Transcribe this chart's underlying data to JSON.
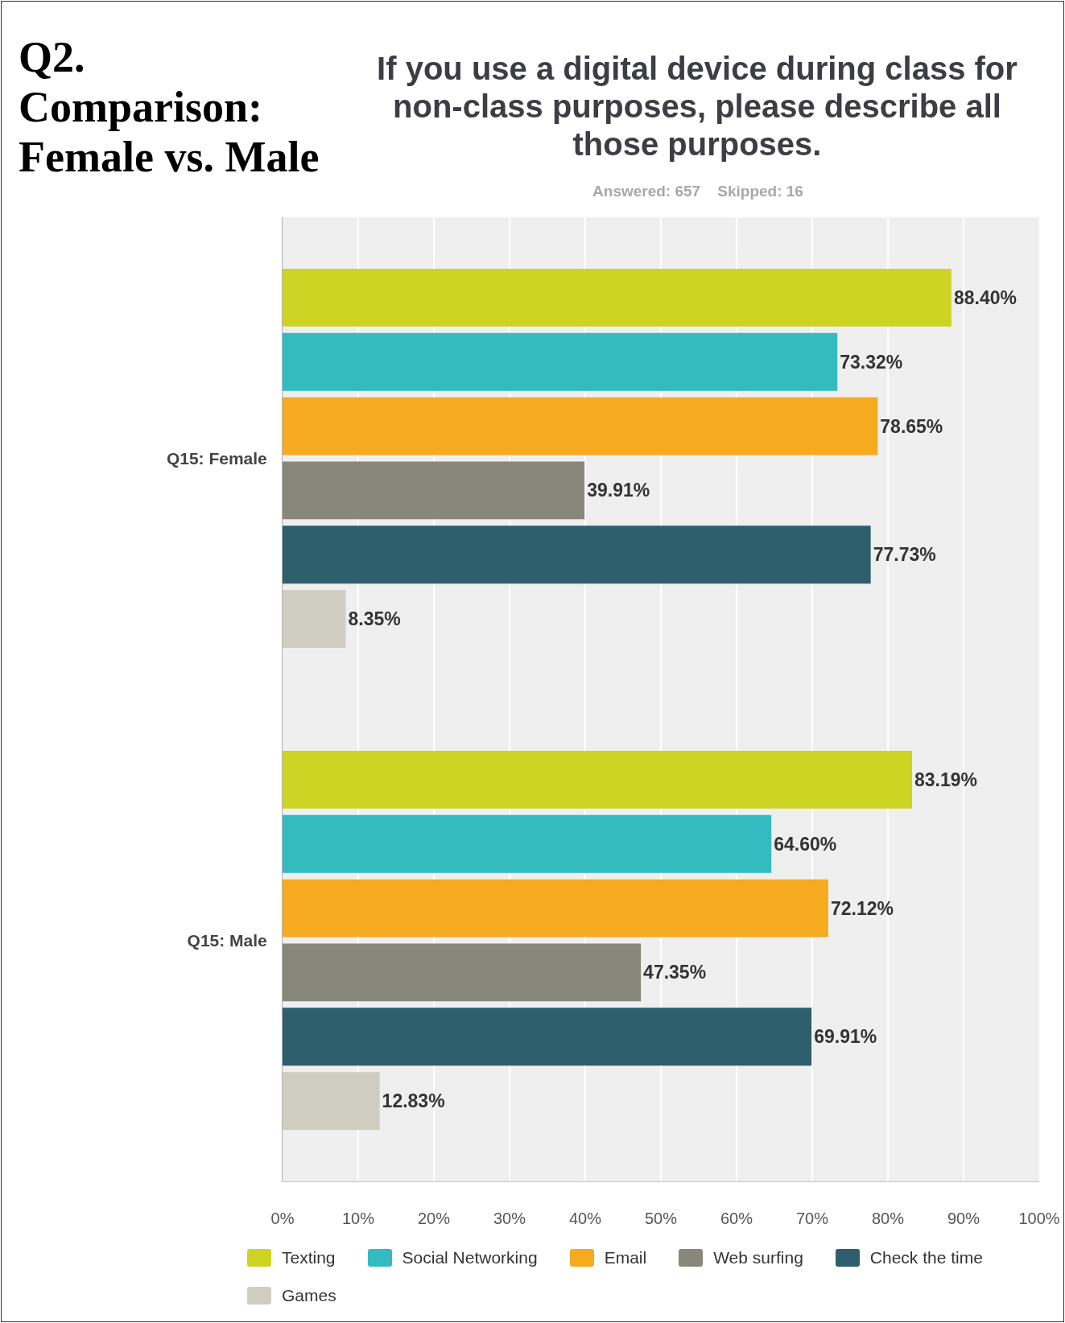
{
  "chart_data": {
    "type": "bar",
    "orientation": "horizontal",
    "title": "If you use a digital device during class for non-class purposes, please describe all those purposes.",
    "subtitle": "Answered: 657    Skipped: 16",
    "annotations": [
      "Q2. Comparison: Female vs. Male"
    ],
    "categories": [
      "Q15: Female",
      "Q15: Male"
    ],
    "series": [
      {
        "name": "Texting",
        "color": "#cdd424",
        "values": [
          88.4,
          83.19
        ],
        "value_labels": [
          "88.40%",
          "83.19%"
        ]
      },
      {
        "name": "Social Networking",
        "color": "#33bbbf",
        "values": [
          73.32,
          64.6
        ],
        "value_labels": [
          "73.32%",
          "64.60%"
        ]
      },
      {
        "name": "Email",
        "color": "#f5aa1f",
        "values": [
          78.65,
          72.12
        ],
        "value_labels": [
          "78.65%",
          "72.12%"
        ]
      },
      {
        "name": "Web surfing",
        "color": "#87887a",
        "values": [
          39.91,
          47.35
        ],
        "value_labels": [
          "39.91%",
          "47.35%"
        ]
      },
      {
        "name": "Check the time",
        "color": "#2e5f6d",
        "values": [
          77.73,
          69.91
        ],
        "value_labels": [
          "77.73%",
          "69.91%"
        ]
      },
      {
        "name": "Games",
        "color": "#cfcdc0",
        "values": [
          8.35,
          12.83
        ],
        "value_labels": [
          "8.35%",
          "12.83%"
        ]
      }
    ],
    "xlim": [
      0,
      100
    ],
    "xticks": [
      {
        "value": 0,
        "label": "0%"
      },
      {
        "value": 10,
        "label": "10%"
      },
      {
        "value": 20,
        "label": "20%"
      },
      {
        "value": 30,
        "label": "30%"
      },
      {
        "value": 40,
        "label": "40%"
      },
      {
        "value": 50,
        "label": "50%"
      },
      {
        "value": 60,
        "label": "60%"
      },
      {
        "value": 70,
        "label": "70%"
      },
      {
        "value": 80,
        "label": "80%"
      },
      {
        "value": 90,
        "label": "90%"
      },
      {
        "value": 100,
        "label": "100%"
      }
    ],
    "grid": "x",
    "legend": "bottom"
  }
}
